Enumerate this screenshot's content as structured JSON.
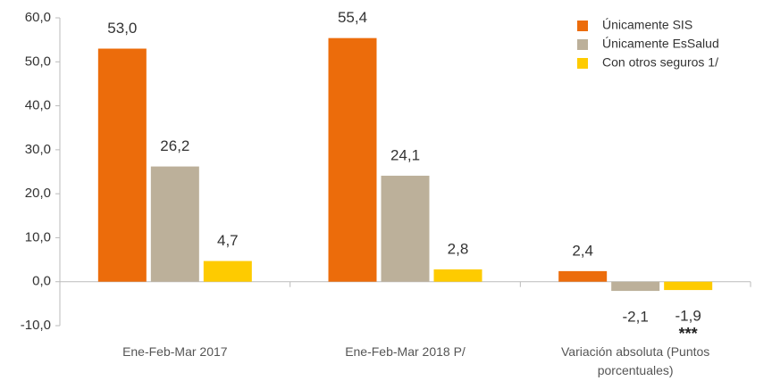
{
  "chart_data": {
    "type": "bar",
    "categories": [
      "Ene-Feb-Mar 2017",
      "Ene-Feb-Mar 2018 P/",
      "Variación absoluta (Puntos porcentuales)"
    ],
    "series": [
      {
        "name": "Únicamente SIS",
        "color": "#ec6c0b",
        "values": [
          53.0,
          55.4,
          2.4
        ],
        "value_labels": [
          "53,0",
          "55,4",
          "2,4"
        ]
      },
      {
        "name": "Únicamente EsSalud",
        "color": "#bcb09a",
        "values": [
          26.2,
          24.1,
          -2.1
        ],
        "value_labels": [
          "26,2",
          "24,1",
          "-2,1"
        ]
      },
      {
        "name": "Con otros seguros 1/",
        "color": "#fecb00",
        "values": [
          4.7,
          2.8,
          -1.9
        ],
        "value_labels": [
          "4,7",
          "2,8",
          "-1,9"
        ]
      }
    ],
    "annotation": "***",
    "ylim": [
      -10,
      60
    ],
    "yticks": [
      {
        "value": -10,
        "label": "-10,0"
      },
      {
        "value": 0,
        "label": "0,0"
      },
      {
        "value": 10,
        "label": "10,0"
      },
      {
        "value": 20,
        "label": "20,0"
      },
      {
        "value": 30,
        "label": "30,0"
      },
      {
        "value": 40,
        "label": "40,0"
      },
      {
        "value": 50,
        "label": "50,0"
      },
      {
        "value": 60,
        "label": "60,0"
      }
    ],
    "legend": "top-right"
  }
}
